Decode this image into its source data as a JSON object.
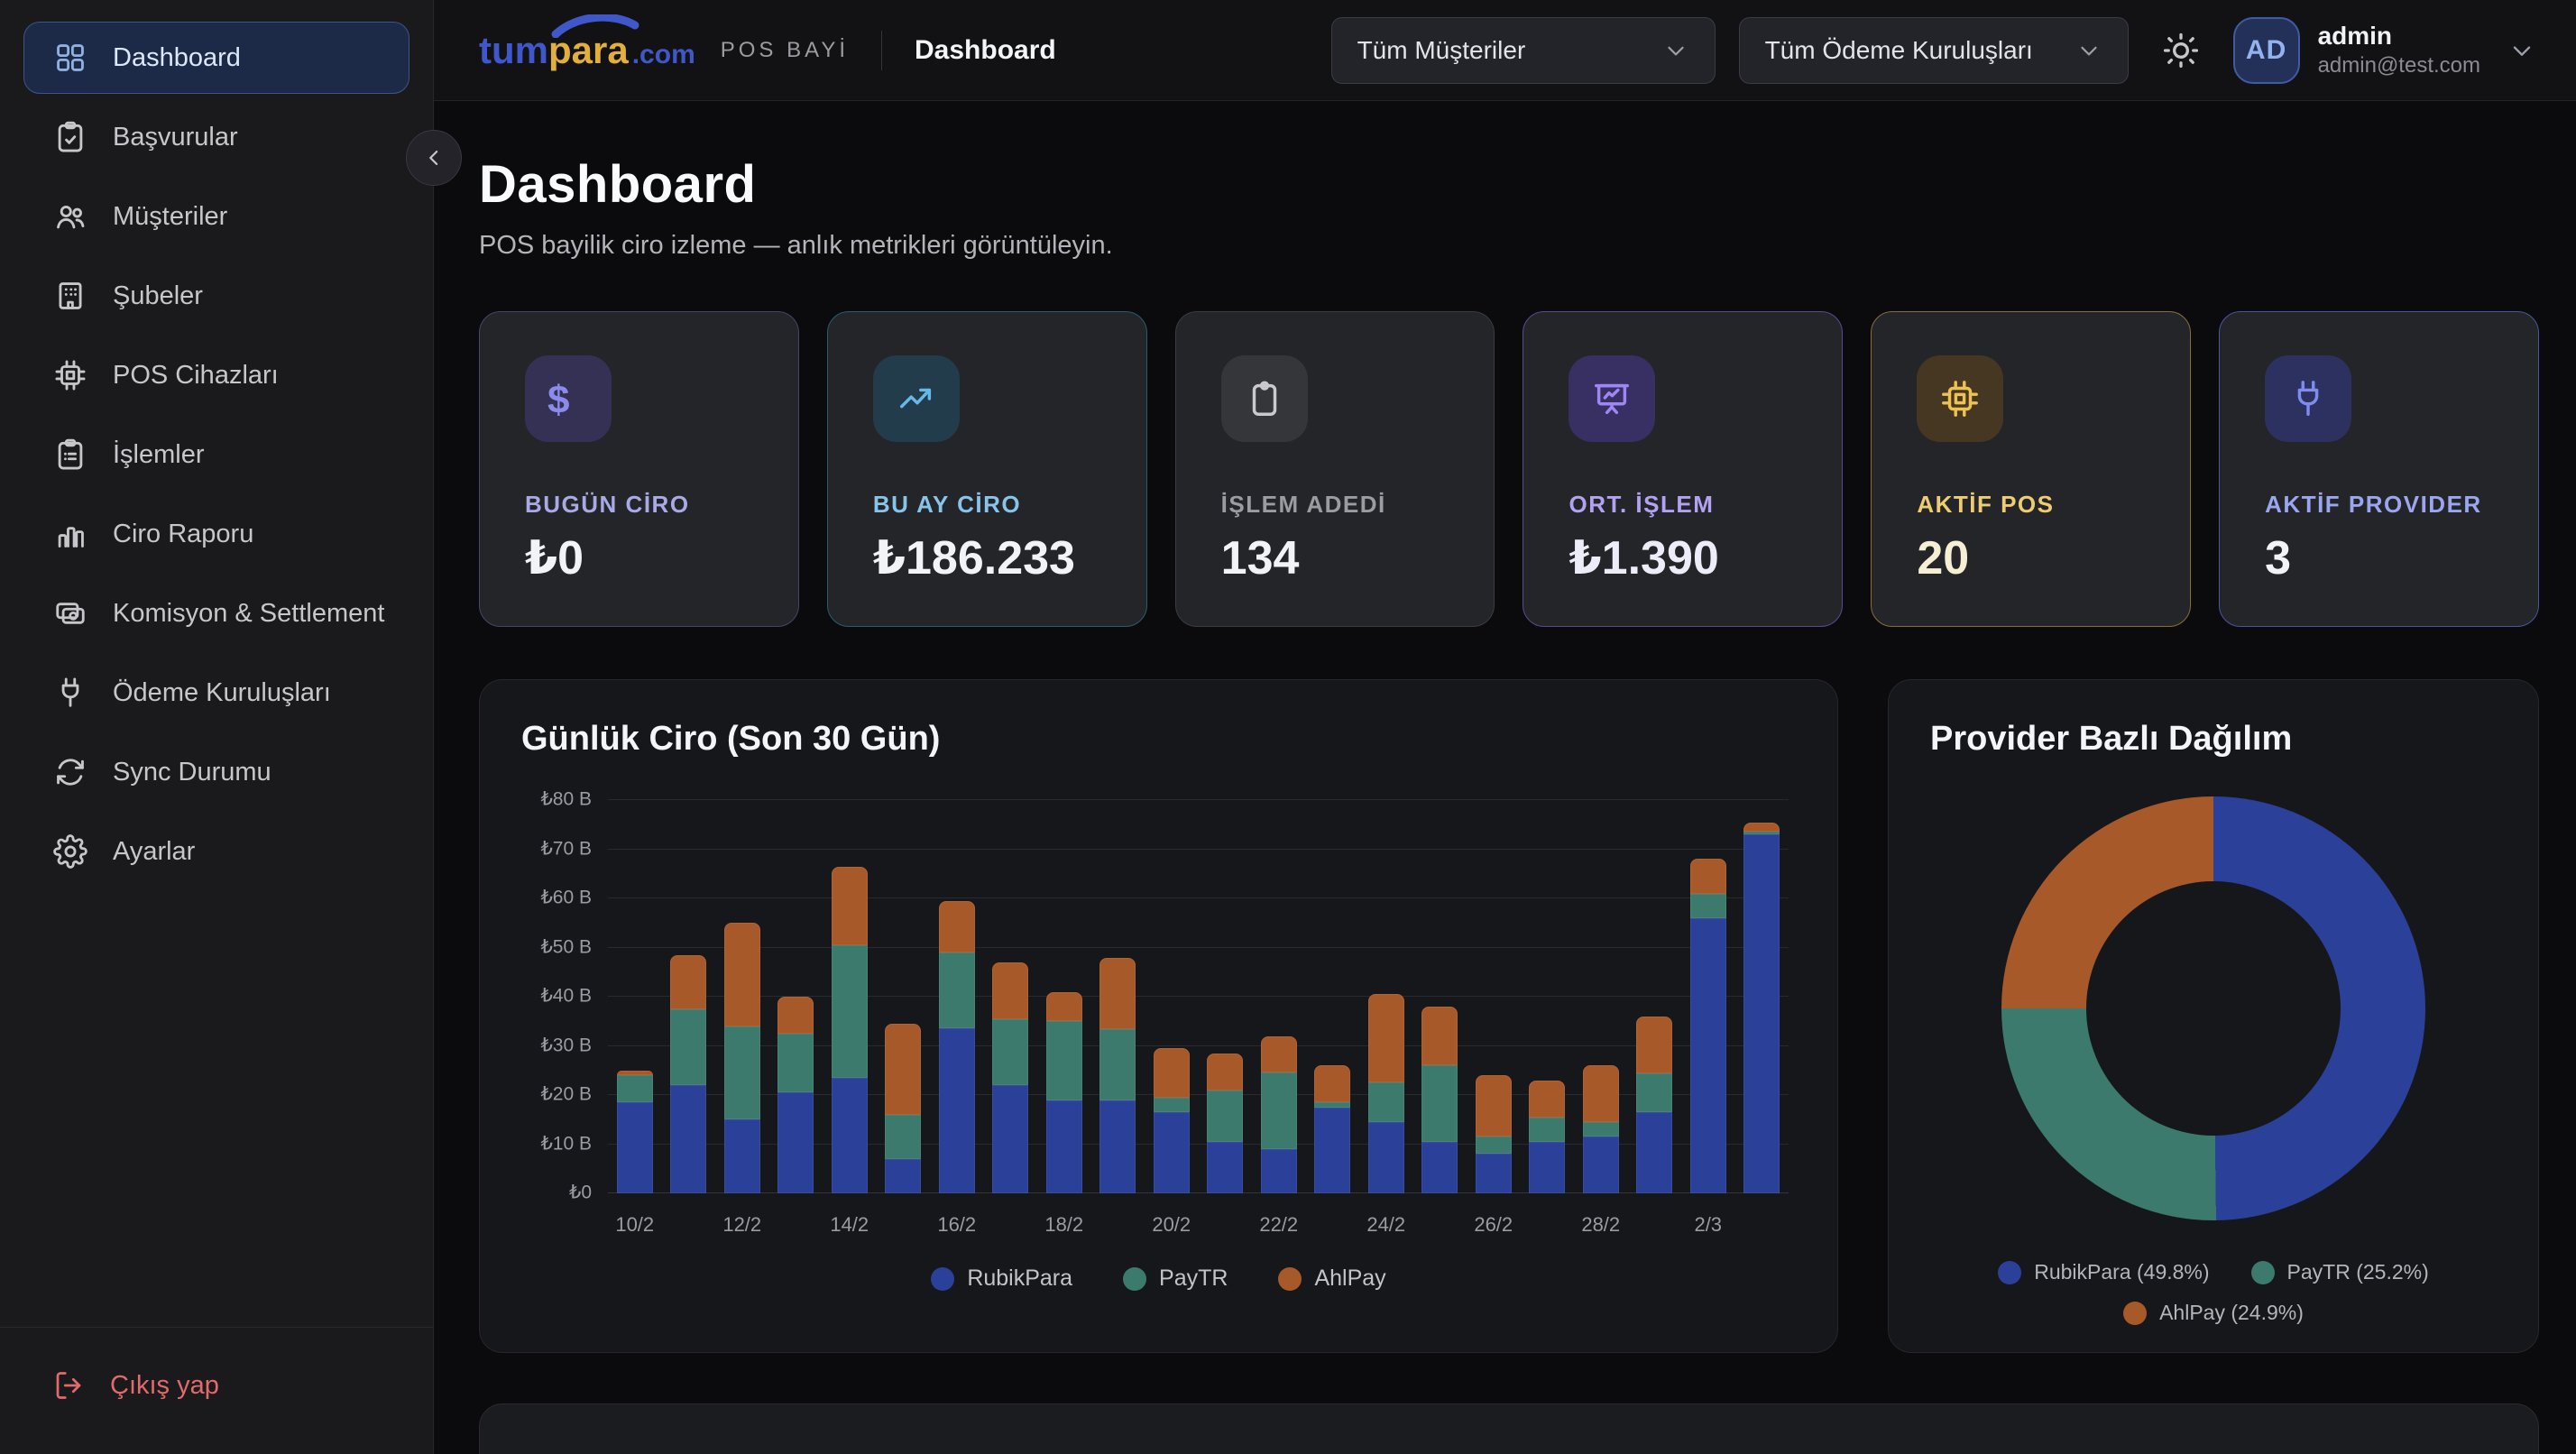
{
  "brand": {
    "logo_tum": "tum",
    "logo_para": "para",
    "logo_tld": ".com",
    "app_label": "POS BAYİ",
    "header_page": "Dashboard"
  },
  "header": {
    "customer_filter": {
      "value": "Tüm Müşteriler"
    },
    "provider_filter": {
      "value": "Tüm Ödeme Kuruluşları"
    },
    "user": {
      "initials": "AD",
      "name": "admin",
      "email": "admin@test.com"
    }
  },
  "sidebar": {
    "items": [
      {
        "label": "Dashboard",
        "icon": "grid-icon",
        "active": true
      },
      {
        "label": "Başvurular",
        "icon": "clipboard-check-icon",
        "active": false
      },
      {
        "label": "Müşteriler",
        "icon": "users-icon",
        "active": false
      },
      {
        "label": "Şubeler",
        "icon": "building-icon",
        "active": false
      },
      {
        "label": "POS Cihazları",
        "icon": "cpu-icon",
        "active": false
      },
      {
        "label": "İşlemler",
        "icon": "clipboard-list-icon",
        "active": false
      },
      {
        "label": "Ciro Raporu",
        "icon": "bar-chart-icon",
        "active": false
      },
      {
        "label": "Komisyon & Settlement",
        "icon": "cards-icon",
        "active": false
      },
      {
        "label": "Ödeme Kuruluşları",
        "icon": "plug-icon",
        "active": false
      },
      {
        "label": "Sync Durumu",
        "icon": "sync-icon",
        "active": false
      },
      {
        "label": "Ayarlar",
        "icon": "gear-icon",
        "active": false
      }
    ],
    "logout_label": "Çıkış yap"
  },
  "page": {
    "title": "Dashboard",
    "subtitle": "POS bayilik ciro izleme — anlık metrikleri görüntüleyin."
  },
  "stats": [
    {
      "label": "BUGÜN CİRO",
      "value": "₺0",
      "theme": "purple",
      "icon": "dollar-icon"
    },
    {
      "label": "BU AY CİRO",
      "value": "₺186.233",
      "theme": "cyan",
      "icon": "trending-up-icon"
    },
    {
      "label": "İŞLEM ADEDİ",
      "value": "134",
      "theme": "gray",
      "icon": "clipboard-icon"
    },
    {
      "label": "ORT. İŞLEM",
      "value": "₺1.390",
      "theme": "violet",
      "icon": "presentation-chart-icon"
    },
    {
      "label": "AKTİF POS",
      "value": "20",
      "theme": "gold",
      "icon": "cpu-icon"
    },
    {
      "label": "AKTİF PROVIDER",
      "value": "3",
      "theme": "indigo",
      "icon": "plug-icon"
    }
  ],
  "chart_data": [
    {
      "type": "bar",
      "stacked": true,
      "title": "Günlük Ciro (Son 30 Gün)",
      "unit": "₺ B (bin TRY)",
      "x": [
        "10/2",
        "11/2",
        "12/2",
        "13/2",
        "14/2",
        "15/2",
        "16/2",
        "17/2",
        "18/2",
        "19/2",
        "20/2",
        "21/2",
        "22/2",
        "23/2",
        "24/2",
        "25/2",
        "26/2",
        "27/2",
        "28/2",
        "1/3",
        "2/3",
        "3/3"
      ],
      "x_ticks_shown": [
        "10/2",
        "12/2",
        "14/2",
        "16/2",
        "18/2",
        "20/2",
        "22/2",
        "24/2",
        "26/2",
        "28/2",
        "2/3"
      ],
      "series": [
        {
          "name": "RubikPara",
          "color": "#2b4098",
          "values": [
            18.5,
            22,
            15,
            20.5,
            23.5,
            7,
            33.5,
            22,
            19,
            19,
            16.5,
            10.5,
            9,
            17.5,
            14.5,
            10.5,
            8,
            10.5,
            11.5,
            16.5,
            56,
            73
          ]
        },
        {
          "name": "PayTR",
          "color": "#3c7a6e",
          "values": [
            5.5,
            15.5,
            19,
            12,
            27,
            9,
            15.5,
            13.5,
            16,
            14.5,
            3,
            10.5,
            15.5,
            1,
            8,
            15.5,
            3.5,
            5,
            3,
            8,
            5,
            0.5
          ]
        },
        {
          "name": "AhlPay",
          "color": "#a8592a",
          "values": [
            1,
            11,
            21,
            7.5,
            16,
            18.5,
            10.5,
            11.5,
            6,
            14.5,
            10,
            7.5,
            7.5,
            7.5,
            18,
            12,
            12.5,
            7.5,
            11.5,
            11.5,
            7,
            2
          ]
        }
      ],
      "ylim": [
        0,
        80
      ],
      "y_ticks": [
        {
          "value": 80,
          "label": "₺80 B"
        },
        {
          "value": 70,
          "label": "₺70 B"
        },
        {
          "value": 60,
          "label": "₺60 B"
        },
        {
          "value": 50,
          "label": "₺50 B"
        },
        {
          "value": 40,
          "label": "₺40 B"
        },
        {
          "value": 30,
          "label": "₺30 B"
        },
        {
          "value": 20,
          "label": "₺20 B"
        },
        {
          "value": 10,
          "label": "₺10 B"
        },
        {
          "value": 0,
          "label": "₺0"
        }
      ],
      "grid": true,
      "legend_position": "bottom"
    },
    {
      "type": "donut",
      "title": "Provider Bazlı Dağılım",
      "slices": [
        {
          "label": "RubikPara",
          "pct": 49.8,
          "color": "#2b4098",
          "legend": "RubikPara (49.8%)"
        },
        {
          "label": "PayTR",
          "pct": 25.2,
          "color": "#3c7a6e",
          "legend": "PayTR (25.2%)"
        },
        {
          "label": "AhlPay",
          "pct": 24.9,
          "color": "#a8592a",
          "legend": "AhlPay (24.9%)"
        }
      ],
      "legend_position": "bottom"
    }
  ],
  "colors": {
    "brand_blue": "#3f57c9",
    "brand_gold": "#e2ae3d",
    "logout_red": "#e16a6a",
    "active_item_bg": "#1d2a47",
    "active_item_border": "#3b5787"
  }
}
